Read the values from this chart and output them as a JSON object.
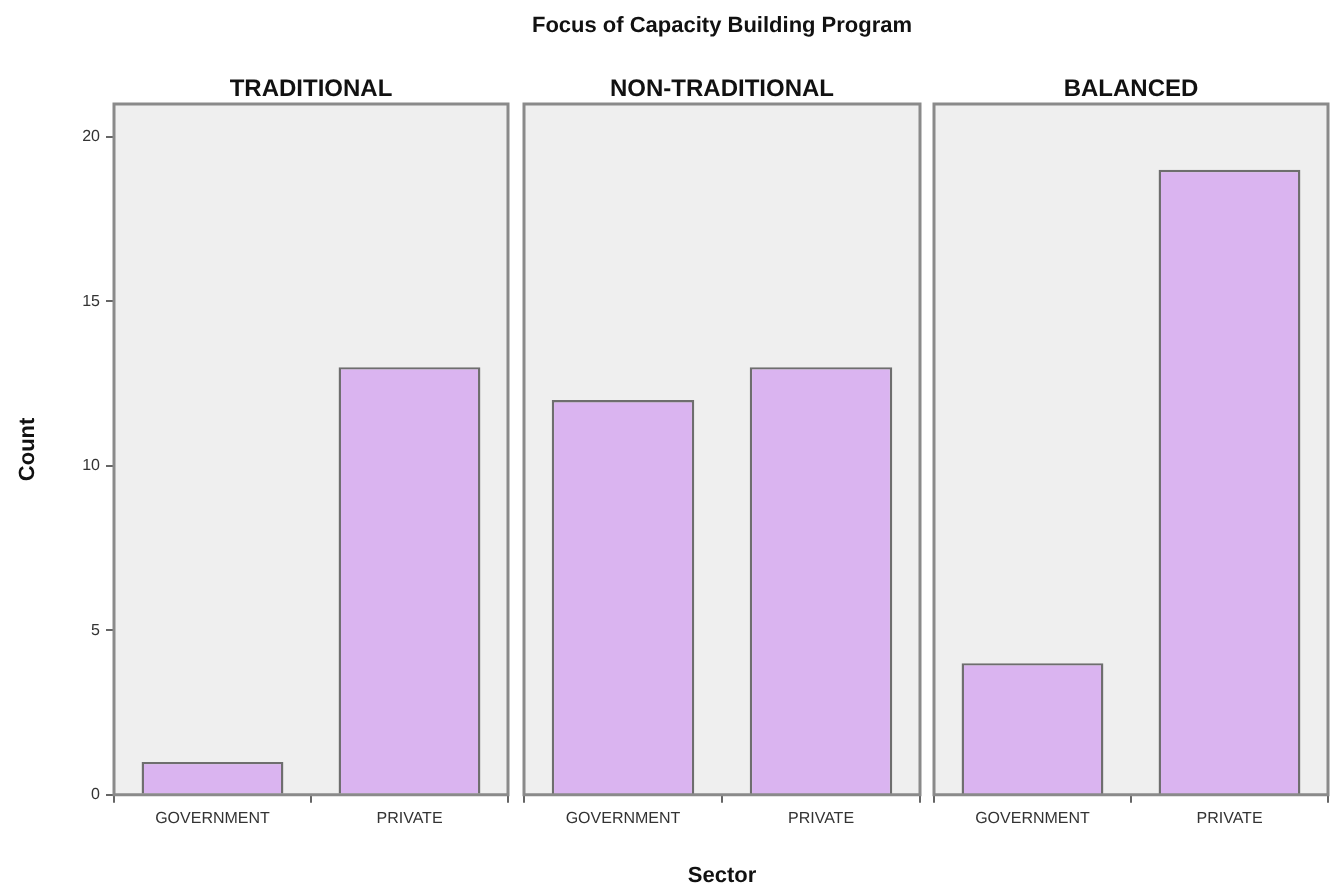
{
  "chart_data": [
    {
      "type": "bar",
      "title": "TRADITIONAL",
      "ylabel": "Count",
      "categories": [
        "GOVERNMENT",
        "PRIVATE"
      ],
      "values": [
        1,
        13
      ],
      "color": "#dab4f0",
      "ylim": [
        0,
        21
      ],
      "yticks": [
        0,
        5,
        10,
        15,
        20
      ],
      "grid": false,
      "legend": false
    },
    {
      "type": "bar",
      "title": "NON-TRADITIONAL",
      "xlabel": "Sector",
      "annotations": [
        "Focus of Capacity Building Program"
      ],
      "categories": [
        "GOVERNMENT",
        "PRIVATE"
      ],
      "values": [
        12,
        13
      ],
      "color": "#dab4f0",
      "ylim": [
        0,
        21
      ],
      "yticks": [
        0,
        5,
        10,
        15,
        20
      ],
      "grid": false,
      "legend": false,
      "tick_labels": "x"
    },
    {
      "type": "bar",
      "title": "BALANCED",
      "categories": [
        "GOVERNMENT",
        "PRIVATE"
      ],
      "values": [
        4,
        19
      ],
      "color": "#dab4f0",
      "ylim": [
        0,
        21
      ],
      "yticks": [
        0,
        5,
        10,
        15,
        20
      ],
      "grid": false,
      "legend": false,
      "tick_labels": "x"
    }
  ]
}
